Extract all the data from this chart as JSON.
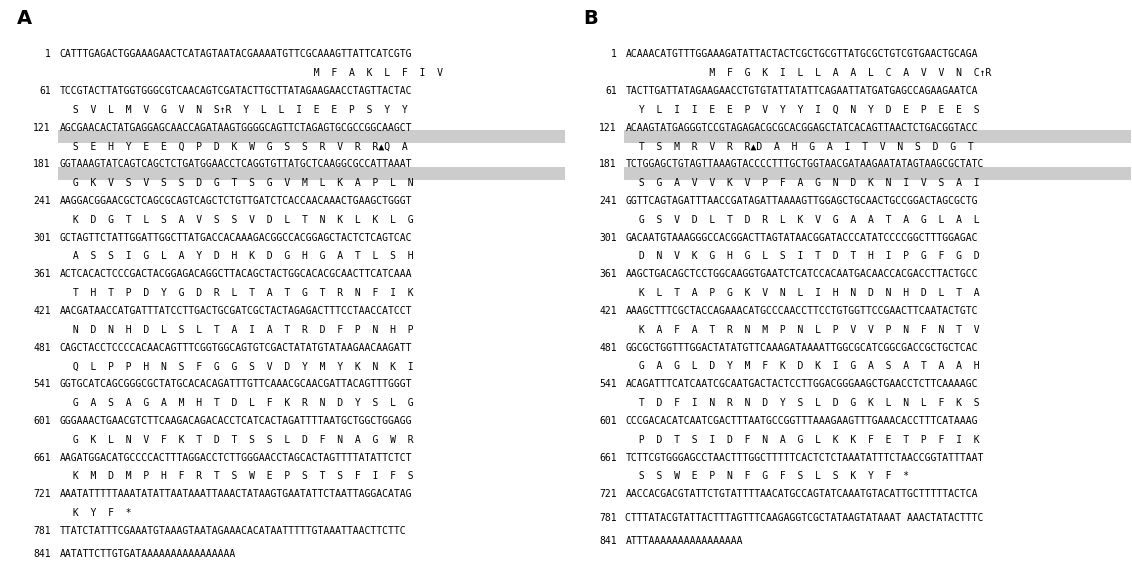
{
  "panel_A_lines": [
    {
      "num": "1",
      "nuc": "CATTTGAGACTGGAAAGAACTCATAGTAATACGAAAATGTTCGCAAAGTTATTCATCGTG",
      "aa": "                                          M  F  A  K  L  F  I  V",
      "hl": 0
    },
    {
      "num": "61",
      "nuc": "TCCGTACTTATGGTGGGCGTCAACAGTCGATACTTGCTTATAGAAGAACCTAGTTACTAC",
      "aa": " S  V  L  M  V  G  V  N  S↑R  Y  L  L  I  E  E  P  S  Y  Y",
      "hl": 0
    },
    {
      "num": "121",
      "nuc": "AGCGAACACTATGAGGAGCAACCAGATAAGTGGGGCAGTTCTAGAGTGCGCCGGCAAGCT",
      "aa": " S  E  H  Y  E  E  Q  P  D  K  W  G  S  S  R  V  R  R▲Q  A",
      "hl": 1
    },
    {
      "num": "181",
      "nuc": "GGTAAAGTATCAGTCAGCTCTGATGGAACCTCAGGTGTTATGCTCAAGGCGCCATTAAAT",
      "aa": " G  K  V  S  V  S  S  D  G  T  S  G  V  M  L  K  A  P  L  N",
      "hl": 2
    },
    {
      "num": "241",
      "nuc": "AAGGACGGAACGCTCAGCGCAGTCAGCTCTGTTGATCTCACCAACAAACTGAAGCTGGGT",
      "aa": " K  D  G  T  L  S  A  V  S  S  V  D  L  T  N  K  L  K  L  G",
      "hl": 0
    },
    {
      "num": "301",
      "nuc": "GCTAGTTCTATTGGATTGGCTTATGACCACAAAGACGGCCACGGAGCTACTCTCAGTCAC",
      "aa": " A  S  S  I  G  L  A  Y  D  H  K  D  G  H  G  A  T  L  S  H",
      "hl": 0
    },
    {
      "num": "361",
      "nuc": "ACTCACACTCCCGACTACGGAGACAGGCTTACAGCTACTGGCACACGCAACTTCATCAAA",
      "aa": " T  H  T  P  D  Y  G  D  R  L  T  A  T  G  T  R  N  F  I  K",
      "hl": 0
    },
    {
      "num": "421",
      "nuc": "AACGATAACCATGATTTATCCTTGACTGCGATCGCTACTAGAGACTTTCCTAACCATCCT",
      "aa": " N  D  N  H  D  L  S  L  T  A  I  A  T  R  D  F  P  N  H  P",
      "hl": 0
    },
    {
      "num": "481",
      "nuc": "CAGCTACCTCCCCACAACAGTTTCGGTGGCAGTGTCGACTATATGTATAAGAACAAGATT",
      "aa": " Q  L  P  P  H  N  S  F  G  G  S  V  D  Y  M  Y  K  N  K  I",
      "hl": 0
    },
    {
      "num": "541",
      "nuc": "GGTGCATCAGCGGGCGCTATGCACACAGATTTGTTCAAACGCAACGATTACAGTTTGGGT",
      "aa": " G  A  S  A  G  A  M  H  T  D  L  F  K  R  N  D  Y  S  L  G",
      "hl": 0
    },
    {
      "num": "601",
      "nuc": "GGGAAACTGAACGTCTTCAAGACAGACACCTCATCACTAGATTTTAATGCTGGCTGGAGG",
      "aa": " G  K  L  N  V  F  K  T  D  T  S  S  L  D  F  N  A  G  W  R",
      "hl": 0
    },
    {
      "num": "661",
      "nuc": "AAGATGGACATGCCCCACTTTAGGACCTCTTGGGAACCTAGCACTAGTTTTATATTCTCT",
      "aa": " K  M  D  M  P  H  F  R  T  S  W  E  P  S  T  S  F  I  F  S",
      "hl": 0
    },
    {
      "num": "721",
      "nuc": "AAATATTTTTAAATATATTAATAAATTAAACTATAAGTGAATATTCTAATTAGGACATAG",
      "aa": " K  Y  F  *",
      "hl": 0
    },
    {
      "num": "781",
      "nuc": "TTATCTATTTCGAAATGTAAAGTAATAGAAACACATAATTTTTGTAAATTAACTTCTTC",
      "aa": null,
      "hl": 0
    },
    {
      "num": "841",
      "nuc": "AATATTCTTGTGATAAAAAAAAAAAAAAAA",
      "aa": null,
      "hl": 0
    }
  ],
  "panel_B_lines": [
    {
      "num": "1",
      "nuc": "ACAAACATGTTTGGAAAGATATTACTACTCGCTGCGTTATGCGCTGTCGTGAACTGCAGA",
      "aa": "             M  F  G  K  I  L  L  A  A  L  C  A  V  V  N  C↑R",
      "hl": 0
    },
    {
      "num": "61",
      "nuc": "TACTTGATTATAGAAGAACCTGTGTATTATATTCAGAATTATGATGAGCCAGAAGAATCA",
      "aa": " Y  L  I  I  E  E  P  V  Y  Y  I  Q  N  Y  D  E  P  E  E  S",
      "hl": 0
    },
    {
      "num": "121",
      "nuc": "ACAAGTATGAGGGTCCGTAGAGACGCGCACGGAGCTATCACAGTTAACTCTGACGGTACC",
      "aa": " T  S  M  R  V  R  R▲D  A  H  G  A  I  T  V  N  S  D  G  T",
      "hl": 1
    },
    {
      "num": "181",
      "nuc": "TCTGGAGCTGTAGTTAAAGTACCCCTTTGCTGGTAACGATAAGAATATAGTAAGCGCTATC",
      "aa": " S  G  A  V  V  K  V  P  F  A  G  N  D  K  N  I  V  S  A  I",
      "hl": 2
    },
    {
      "num": "241",
      "nuc": "GGTTCAGTAGATTTAACCGATAGATTAAAAGTTGGAGCTGCAACTGCCGGACTAGCGCTG",
      "aa": " G  S  V  D  L  T  D  R  L  K  V  G  A  A  T  A  G  L  A  L",
      "hl": 0
    },
    {
      "num": "301",
      "nuc": "GACAATGTAAAGGGCCACGGACTTAGTATAACGGATACCCATATCCCCGGCTTTGGAGAC",
      "aa": " D  N  V  K  G  H  G  L  S  I  T  D  T  H  I  P  G  F  G  D",
      "hl": 0
    },
    {
      "num": "361",
      "nuc": "AAGCTGACAGCTCCTGGCAAGGTGAATCTCATCCACAATGACAACCACGACCTTACTGCC",
      "aa": " K  L  T  A  P  G  K  V  N  L  I  H  N  D  N  H  D  L  T  A",
      "hl": 0
    },
    {
      "num": "421",
      "nuc": "AAAGCTTTCGCTACCAGAAACATGCCCAACCTTCCTGTGGTTCCGAACTTCAATACTGTC",
      "aa": " K  A  F  A  T  R  N  M  P  N  L  P  V  V  P  N  F  N  T  V",
      "hl": 0
    },
    {
      "num": "481",
      "nuc": "GGCGCTGGTTTGGACTATATGTTCAAAGATAAAATTGGCGCATCGGCGACCGCTGCTCAC",
      "aa": " G  A  G  L  D  Y  M  F  K  D  K  I  G  A  S  A  T  A  A  H",
      "hl": 0
    },
    {
      "num": "541",
      "nuc": "ACAGATTTCATCAATCGCAATGACTACTCCTTGGACGGGAAGCTGAACCTCTTCAAAAGC",
      "aa": " T  D  F  I  N  R  N  D  Y  S  L  D  G  K  L  N  L  F  K  S",
      "hl": 0
    },
    {
      "num": "601",
      "nuc": "CCCGACACATCAATCGACTTTAATGCCGGTTTAAAGAAGTTTGAAACACCTTTCATAAAG",
      "aa": " P  D  T  S  I  D  F  N  A  G  L  K  K  F  E  T  P  F  I  K",
      "hl": 0
    },
    {
      "num": "661",
      "nuc": "TCTTCGTGGGAGCCTAACTTTGGCTTTTTCACTCTCTAAATATTTCTAACCGGTATTTAAT",
      "aa": " S  S  W  E  P  N  F  G  F  S  L  S  K  Y  F  *",
      "hl": 0
    },
    {
      "num": "721",
      "nuc": "AACCACGACGTATTCTGTATTTTAACATGCCAGTATCAAATGTACATTGCTTTTTACTCA",
      "aa": null,
      "hl": 0
    },
    {
      "num": "781",
      "nuc": "CTTTATACGTATTACTTTAGTTTCAAGAGGTCGCTATAAGTATAAAT AAACTATACTTTC",
      "aa": null,
      "hl": 0
    },
    {
      "num": "841",
      "nuc": "ATTTAAAAAAAAAAAAAAAA",
      "aa": null,
      "hl": 0
    }
  ]
}
